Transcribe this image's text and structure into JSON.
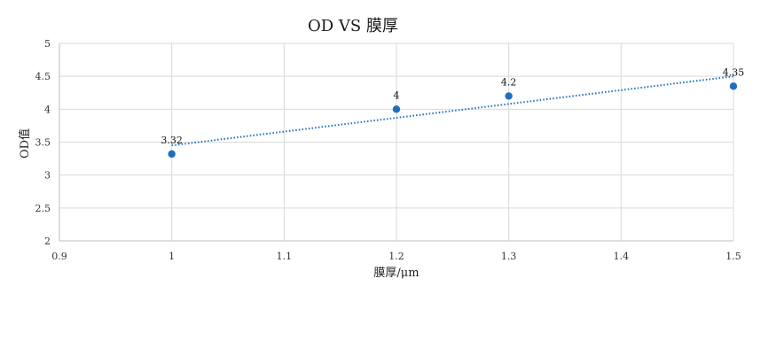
{
  "chart_data": {
    "type": "scatter",
    "title": "OD VS 膜厚",
    "xlabel": "膜厚/μm",
    "ylabel": "OD值",
    "xlim": [
      0.9,
      1.5
    ],
    "ylim": [
      2,
      5
    ],
    "x_ticks": [
      0.9,
      1,
      1.1,
      1.2,
      1.3,
      1.4,
      1.5
    ],
    "y_ticks": [
      2,
      2.5,
      3,
      3.5,
      4,
      4.5,
      5
    ],
    "x_tick_labels": [
      "0.9",
      "1",
      "1.1",
      "1.2",
      "1.3",
      "1.4",
      "1.5"
    ],
    "y_tick_labels": [
      "2",
      "2.5",
      "3",
      "3.5",
      "4",
      "4.5",
      "5"
    ],
    "grid": true,
    "series": [
      {
        "x": [
          1,
          1.2,
          1.3,
          1.5
        ],
        "y": [
          3.32,
          4,
          4.2,
          4.35
        ],
        "labels": [
          "3.32",
          "4",
          "4.2",
          "4.35"
        ],
        "color": "#1f6fbf",
        "trendline": {
          "type": "linear",
          "start": [
            1,
            3.45
          ],
          "end": [
            1.5,
            4.5
          ],
          "style": "dotted",
          "color": "#1f6fbf"
        }
      }
    ]
  }
}
